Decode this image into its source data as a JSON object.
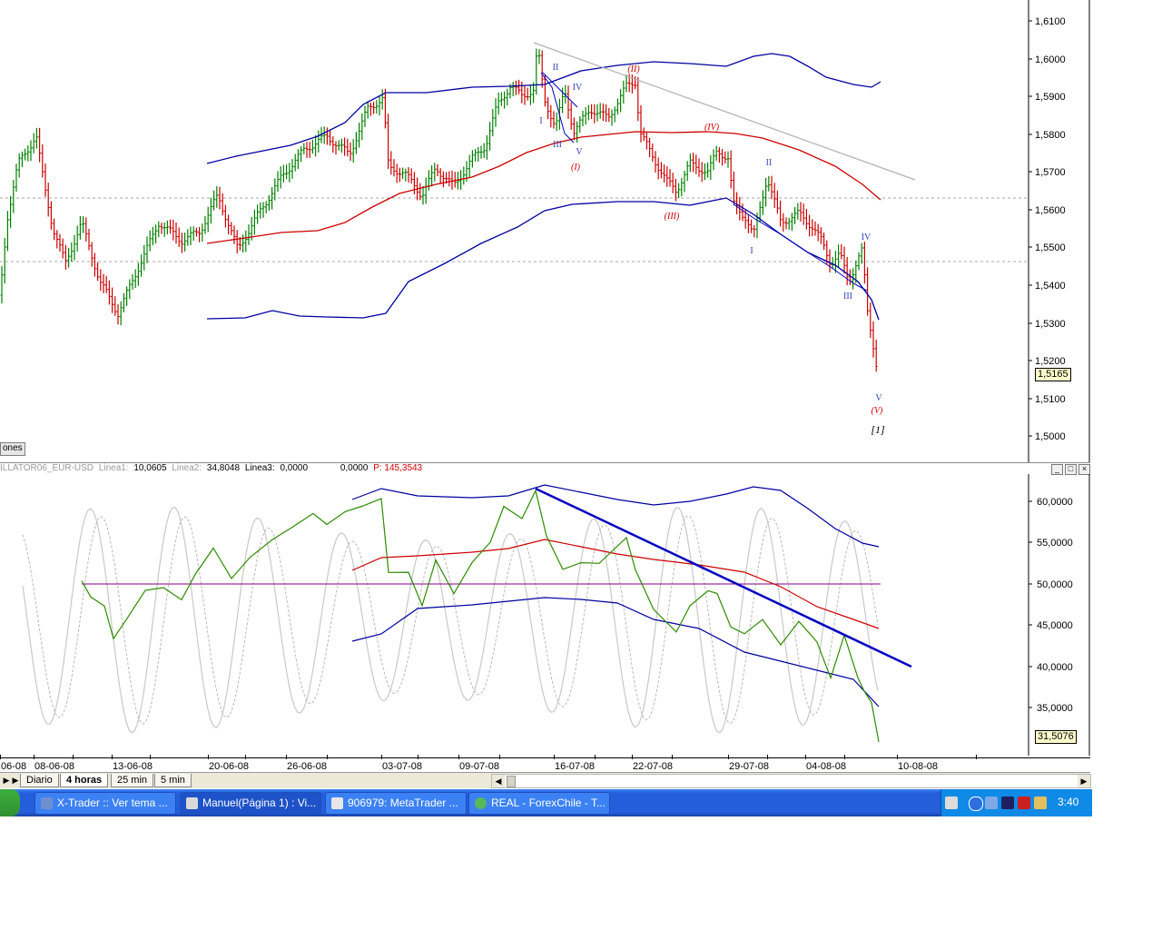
{
  "main": {
    "price_ticks": [
      "1,6100",
      "1,6000",
      "1,5900",
      "1,5800",
      "1,5700",
      "1,5600",
      "1,5500",
      "1,5400",
      "1,5300",
      "1,5200",
      "1,5100",
      "1,5000"
    ],
    "current_price": "1,5165",
    "side_tag": "ones",
    "wave_labels": {
      "blue": [
        "I",
        "II",
        "III",
        "IV",
        "V",
        "I",
        "II",
        "III",
        "IV",
        "V"
      ],
      "red": [
        "(I)",
        "(II)",
        "(III)",
        "(IV)",
        "(V)"
      ],
      "black": [
        "[1]"
      ]
    }
  },
  "indicator": {
    "name": "ILLATOR06_EUR-USD",
    "line1_label": "Linea1:",
    "line1_value": "10,0605",
    "line2_label": "Linea2:",
    "line2_value": "34,8048",
    "line3_label": "Linea3:",
    "line3_value": "0,0000",
    "extra_value": "0,0000",
    "p_label": "P: 145,3543",
    "ticks": [
      "60,0000",
      "55,0000",
      "50,0000",
      "45,0000",
      "40,0000",
      "35,0000"
    ],
    "current_value": "31,5076"
  },
  "dates": [
    "06-08",
    "08-06-08",
    "13-06-08",
    "20-06-08",
    "26-06-08",
    "03-07-08",
    "09-07-08",
    "16-07-08",
    "22-07-08",
    "29-07-08",
    "04-08-08",
    "10-08-08"
  ],
  "tabs": [
    "Diario",
    "4 horas",
    "25 min",
    "5 min"
  ],
  "active_tab": "4 horas",
  "taskbar": {
    "items": [
      "X-Trader :: Ver tema ...",
      "Manuel(Página 1) : Vi...",
      "906979: MetaTrader ...",
      "REAL - ForexChile - T..."
    ],
    "clock": "3:40"
  },
  "colors": {
    "bull_bar": "#008000",
    "bear_bar": "#cc0000",
    "band": "#0000a0",
    "mid_band": "#cc0000",
    "trendline": "#0000c0",
    "osc_line": "#2e8b00",
    "taskbar": "#245edb"
  }
}
